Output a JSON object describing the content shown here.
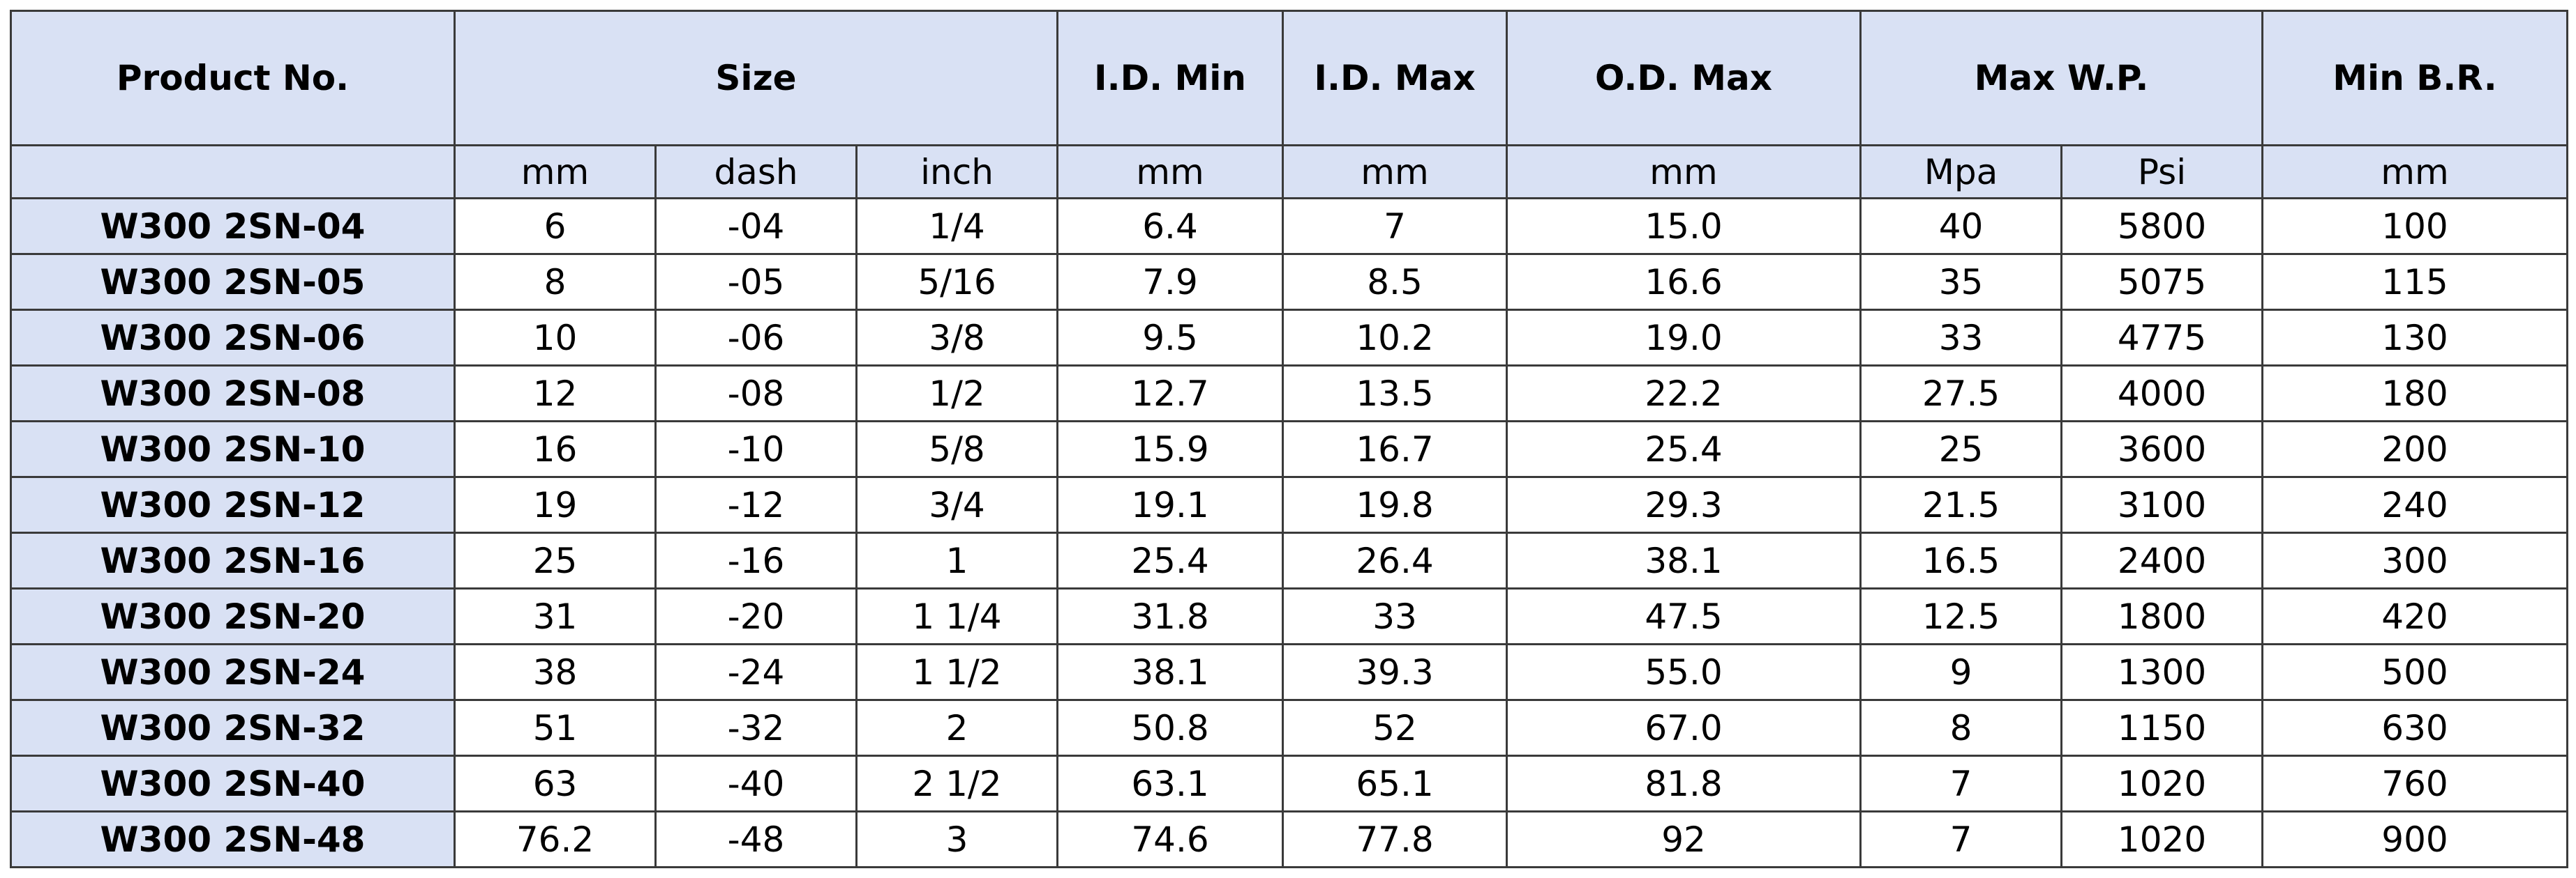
{
  "header": {
    "product_no": "Product No.",
    "size": "Size",
    "id_min": "I.D. Min",
    "id_max": "I.D. Max",
    "od_max": "O.D. Max",
    "max_wp": "Max W.P.",
    "min_br": "Min B.R."
  },
  "units": {
    "product_no": "",
    "size_mm": "mm",
    "size_dash": "dash",
    "size_inch": "inch",
    "id_min": "mm",
    "id_max": "mm",
    "od_max": "mm",
    "wp_mpa": "Mpa",
    "wp_psi": "Psi",
    "min_br": "mm"
  },
  "rows": [
    {
      "product_no": "W300 2SN-04",
      "mm": "6",
      "dash": "-04",
      "inch": "1/4",
      "id_min": "6.4",
      "id_max": "7",
      "od_max": "15.0",
      "mpa": "40",
      "psi": "5800",
      "min_br": "100"
    },
    {
      "product_no": "W300 2SN-05",
      "mm": "8",
      "dash": "-05",
      "inch": "5/16",
      "id_min": "7.9",
      "id_max": "8.5",
      "od_max": "16.6",
      "mpa": "35",
      "psi": "5075",
      "min_br": "115"
    },
    {
      "product_no": "W300 2SN-06",
      "mm": "10",
      "dash": "-06",
      "inch": "3/8",
      "id_min": "9.5",
      "id_max": "10.2",
      "od_max": "19.0",
      "mpa": "33",
      "psi": "4775",
      "min_br": "130"
    },
    {
      "product_no": "W300 2SN-08",
      "mm": "12",
      "dash": "-08",
      "inch": "1/2",
      "id_min": "12.7",
      "id_max": "13.5",
      "od_max": "22.2",
      "mpa": "27.5",
      "psi": "4000",
      "min_br": "180"
    },
    {
      "product_no": "W300 2SN-10",
      "mm": "16",
      "dash": "-10",
      "inch": "5/8",
      "id_min": "15.9",
      "id_max": "16.7",
      "od_max": "25.4",
      "mpa": "25",
      "psi": "3600",
      "min_br": "200"
    },
    {
      "product_no": "W300 2SN-12",
      "mm": "19",
      "dash": "-12",
      "inch": "3/4",
      "id_min": "19.1",
      "id_max": "19.8",
      "od_max": "29.3",
      "mpa": "21.5",
      "psi": "3100",
      "min_br": "240"
    },
    {
      "product_no": "W300 2SN-16",
      "mm": "25",
      "dash": "-16",
      "inch": "1",
      "id_min": "25.4",
      "id_max": "26.4",
      "od_max": "38.1",
      "mpa": "16.5",
      "psi": "2400",
      "min_br": "300"
    },
    {
      "product_no": "W300 2SN-20",
      "mm": "31",
      "dash": "-20",
      "inch": "1 1/4",
      "id_min": "31.8",
      "id_max": "33",
      "od_max": "47.5",
      "mpa": "12.5",
      "psi": "1800",
      "min_br": "420"
    },
    {
      "product_no": "W300 2SN-24",
      "mm": "38",
      "dash": "-24",
      "inch": "1 1/2",
      "id_min": "38.1",
      "id_max": "39.3",
      "od_max": "55.0",
      "mpa": "9",
      "psi": "1300",
      "min_br": "500"
    },
    {
      "product_no": "W300 2SN-32",
      "mm": "51",
      "dash": "-32",
      "inch": "2",
      "id_min": "50.8",
      "id_max": "52",
      "od_max": "67.0",
      "mpa": "8",
      "psi": "1150",
      "min_br": "630"
    },
    {
      "product_no": "W300 2SN-40",
      "mm": "63",
      "dash": "-40",
      "inch": "2 1/2",
      "id_min": "63.1",
      "id_max": "65.1",
      "od_max": "81.8",
      "mpa": "7",
      "psi": "1020",
      "min_br": "760"
    },
    {
      "product_no": "W300 2SN-48",
      "mm": "76.2",
      "dash": "-48",
      "inch": "3",
      "id_min": "74.6",
      "id_max": "77.8",
      "od_max": "92",
      "mpa": "7",
      "psi": "1020",
      "min_br": "900"
    }
  ]
}
